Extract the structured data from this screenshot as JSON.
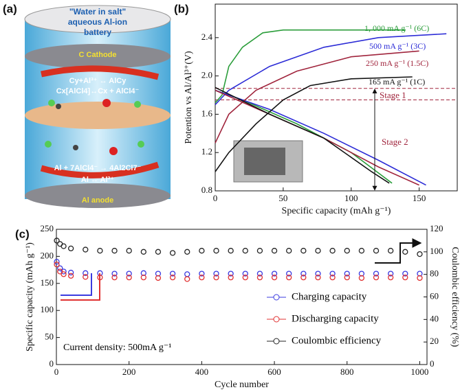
{
  "diagram": {
    "panel_label": "(a)",
    "title": [
      "\"Water in salt\"",
      "aqueous Al-ion",
      "battery"
    ],
    "cathode": "C Cathode",
    "anode": "Al anode",
    "equations": [
      "Cy+Al³⁺ ↔ AlCy",
      "Cx[AlCl4]↔Cx + AlCl4⁻",
      "Al + 7AlCl4⁻ → 4Al2Cl7⁻",
      "Al ↔ Al³⁺"
    ]
  },
  "chart_data": [
    {
      "type": "line",
      "panel_label": "(b)",
      "x_label": "Specific capacity (mAh g⁻¹)",
      "y_label": "Potention vs Al/Al³⁺(V)",
      "xlim": [
        0,
        178
      ],
      "xticks": [
        0,
        50,
        100,
        150
      ],
      "ylim": [
        0.8,
        2.75
      ],
      "yticks": [
        0.8,
        1.2,
        1.6,
        {
          "value": 2,
          "label": "2.0"
        },
        2.4
      ],
      "series": [
        {
          "name": "1, 000 mA g⁻¹ (6C)",
          "color": "#2a9d3a",
          "x": [
            0,
            5,
            10,
            20,
            35,
            50,
            140,
            null,
            0,
            20,
            60,
            100,
            130
          ],
          "values": [
            1.72,
            1.8,
            2.1,
            2.3,
            2.45,
            2.48,
            2.48,
            null,
            1.85,
            1.75,
            1.5,
            1.2,
            0.88
          ]
        },
        {
          "name": "500 mA g⁻¹ (3C)",
          "color": "#2b2bd6",
          "x": [
            0,
            10,
            40,
            80,
            120,
            170,
            null,
            0,
            40,
            80,
            120,
            155
          ],
          "values": [
            1.7,
            1.85,
            2.1,
            2.3,
            2.4,
            2.44,
            null,
            1.85,
            1.65,
            1.4,
            1.12,
            0.86
          ]
        },
        {
          "name": "250 mA g⁻¹ (1.5C)",
          "color": "#a0243c",
          "x": [
            0,
            10,
            30,
            60,
            100,
            150,
            null,
            0,
            40,
            80,
            120,
            150
          ],
          "values": [
            1.3,
            1.6,
            1.85,
            2.05,
            2.2,
            2.26,
            null,
            1.85,
            1.6,
            1.35,
            1.05,
            0.86
          ]
        },
        {
          "name": "165 mA g⁻¹ (1C)",
          "color": "#111111",
          "x": [
            0,
            10,
            30,
            50,
            70,
            100,
            145,
            null,
            0,
            40,
            80,
            115,
            128
          ],
          "values": [
            1.0,
            1.2,
            1.5,
            1.75,
            1.9,
            1.97,
            1.99,
            null,
            1.88,
            1.6,
            1.35,
            1.0,
            0.88
          ]
        }
      ],
      "reference_lines": [
        1.87,
        1.75
      ],
      "reference_color": "#a0243c",
      "annotations": [
        "Stage 1",
        "Stage 2"
      ]
    },
    {
      "type": "line",
      "panel_label": "(c)",
      "x_label": "Cycle number",
      "y_label": "Specific capacity (mAh g⁻¹)",
      "y2_label": "Coulombic efficiency (%)",
      "marker": "open-circle",
      "legend": "lower right",
      "xlim": [
        0,
        1020
      ],
      "xticks": [
        0,
        200,
        400,
        600,
        800,
        1000
      ],
      "ylim": [
        0,
        250
      ],
      "yticks": [
        0,
        50,
        100,
        150,
        200,
        250
      ],
      "y2lim": [
        0,
        120
      ],
      "y2ticks": [
        0,
        20,
        40,
        60,
        80,
        100,
        120
      ],
      "annotations": [
        "Current density: 500mA g⁻¹"
      ],
      "series": [
        {
          "name": "Charging capacity",
          "color": "#3a3ae0",
          "x": [
            1,
            10,
            20,
            40,
            80,
            120,
            160,
            200,
            240,
            280,
            320,
            360,
            400,
            440,
            480,
            520,
            560,
            600,
            640,
            680,
            720,
            760,
            800,
            840,
            880,
            920,
            960,
            1000
          ],
          "values": [
            190,
            178,
            172,
            170,
            169,
            169,
            168,
            168,
            169,
            168,
            168,
            167,
            168,
            168,
            168,
            168,
            168,
            168,
            168,
            168,
            168,
            168,
            168,
            168,
            168,
            168,
            168,
            168
          ]
        },
        {
          "name": "Discharging capacity",
          "color": "#e03030",
          "x": [
            1,
            10,
            20,
            40,
            80,
            120,
            160,
            200,
            240,
            280,
            320,
            360,
            400,
            440,
            480,
            520,
            560,
            600,
            640,
            680,
            720,
            760,
            800,
            840,
            880,
            920,
            960,
            1000
          ],
          "values": [
            185,
            172,
            167,
            164,
            162,
            161,
            161,
            161,
            161,
            160,
            161,
            158,
            161,
            161,
            161,
            161,
            161,
            161,
            161,
            161,
            161,
            161,
            161,
            160,
            161,
            161,
            161,
            160
          ]
        },
        {
          "name": "Coulombic efficiency",
          "color": "#222222",
          "axis": "y2",
          "x": [
            1,
            10,
            20,
            40,
            80,
            120,
            160,
            200,
            240,
            280,
            320,
            360,
            400,
            440,
            480,
            520,
            560,
            600,
            640,
            680,
            720,
            760,
            800,
            840,
            880,
            920,
            960,
            1000
          ],
          "values": [
            110,
            107,
            105,
            103,
            102,
            101,
            101,
            101,
            100,
            100,
            99,
            100,
            101,
            101,
            101,
            101,
            101,
            101,
            101,
            101,
            101,
            101,
            101,
            101,
            101,
            101,
            100,
            98
          ]
        }
      ]
    }
  ]
}
